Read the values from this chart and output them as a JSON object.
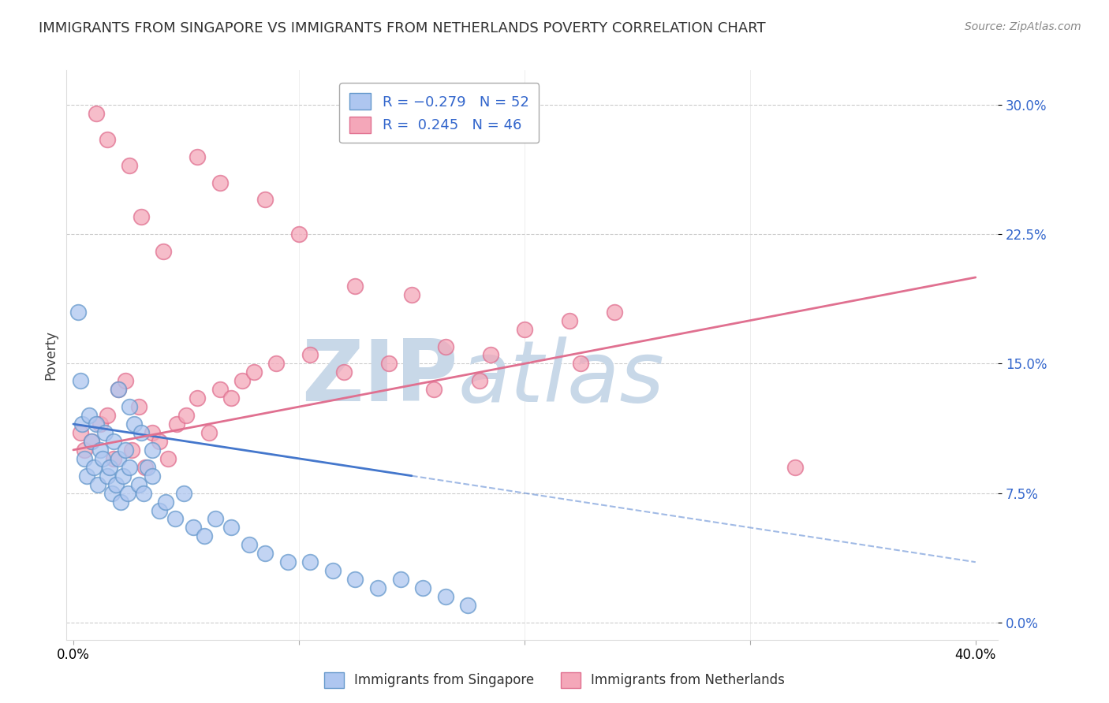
{
  "title": "IMMIGRANTS FROM SINGAPORE VS IMMIGRANTS FROM NETHERLANDS POVERTY CORRELATION CHART",
  "source": "Source: ZipAtlas.com",
  "ylabel": "Poverty",
  "ytick_vals": [
    0.0,
    7.5,
    15.0,
    22.5,
    30.0
  ],
  "xlim": [
    0.0,
    40.0
  ],
  "ylim": [
    -1.0,
    32.0
  ],
  "legend_entries_top": [
    {
      "label": "R = -0.279   N = 52",
      "color": "#aec6f0",
      "edge": "#6699cc"
    },
    {
      "label": "R =  0.245   N = 46",
      "color": "#f4a7b9",
      "edge": "#e07090"
    }
  ],
  "legend_bottom": [
    "Immigrants from Singapore",
    "Immigrants from Netherlands"
  ],
  "singapore_color": "#aec6f0",
  "netherlands_color": "#f4a7b9",
  "singapore_edge": "#6699cc",
  "netherlands_edge": "#e07090",
  "trendline_singapore_color": "#4477cc",
  "trendline_netherlands_color": "#e07090",
  "watermark_color": "#c8d8e8",
  "singapore_x": [
    0.2,
    0.3,
    0.4,
    0.5,
    0.6,
    0.7,
    0.8,
    0.9,
    1.0,
    1.1,
    1.2,
    1.3,
    1.4,
    1.5,
    1.6,
    1.7,
    1.8,
    1.9,
    2.0,
    2.1,
    2.2,
    2.3,
    2.4,
    2.5,
    2.7,
    2.9,
    3.1,
    3.3,
    3.5,
    3.8,
    4.1,
    4.5,
    4.9,
    5.3,
    5.8,
    6.3,
    7.0,
    7.8,
    8.5,
    9.5,
    10.5,
    11.5,
    12.5,
    13.5,
    14.5,
    15.5,
    16.5,
    17.5,
    2.0,
    2.5,
    3.0,
    3.5
  ],
  "singapore_y": [
    18.0,
    14.0,
    11.5,
    9.5,
    8.5,
    12.0,
    10.5,
    9.0,
    11.5,
    8.0,
    10.0,
    9.5,
    11.0,
    8.5,
    9.0,
    7.5,
    10.5,
    8.0,
    9.5,
    7.0,
    8.5,
    10.0,
    7.5,
    9.0,
    11.5,
    8.0,
    7.5,
    9.0,
    8.5,
    6.5,
    7.0,
    6.0,
    7.5,
    5.5,
    5.0,
    6.0,
    5.5,
    4.5,
    4.0,
    3.5,
    3.5,
    3.0,
    2.5,
    2.0,
    2.5,
    2.0,
    1.5,
    1.0,
    13.5,
    12.5,
    11.0,
    10.0
  ],
  "netherlands_x": [
    0.3,
    0.5,
    0.8,
    1.2,
    1.5,
    1.8,
    2.0,
    2.3,
    2.6,
    2.9,
    3.2,
    3.5,
    3.8,
    4.2,
    4.6,
    5.0,
    5.5,
    6.0,
    6.5,
    7.0,
    7.5,
    8.0,
    9.0,
    10.5,
    12.0,
    14.0,
    16.0,
    18.0,
    20.0,
    22.0,
    24.0,
    5.5,
    6.5,
    8.5,
    10.0,
    12.5,
    15.0,
    32.0,
    16.5,
    18.5,
    22.5,
    1.0,
    1.5,
    2.5,
    3.0,
    4.0
  ],
  "netherlands_y": [
    11.0,
    10.0,
    10.5,
    11.5,
    12.0,
    9.5,
    13.5,
    14.0,
    10.0,
    12.5,
    9.0,
    11.0,
    10.5,
    9.5,
    11.5,
    12.0,
    13.0,
    11.0,
    13.5,
    13.0,
    14.0,
    14.5,
    15.0,
    15.5,
    14.5,
    15.0,
    13.5,
    14.0,
    17.0,
    17.5,
    18.0,
    27.0,
    25.5,
    24.5,
    22.5,
    19.5,
    19.0,
    9.0,
    16.0,
    15.5,
    15.0,
    29.5,
    28.0,
    26.5,
    23.5,
    21.5
  ],
  "sing_trend_x0": 0.0,
  "sing_trend_y0": 11.5,
  "sing_trend_x1": 40.0,
  "sing_trend_y1": 3.5,
  "neth_trend_x0": 0.0,
  "neth_trend_y0": 10.0,
  "neth_trend_x1": 40.0,
  "neth_trend_y1": 20.0
}
